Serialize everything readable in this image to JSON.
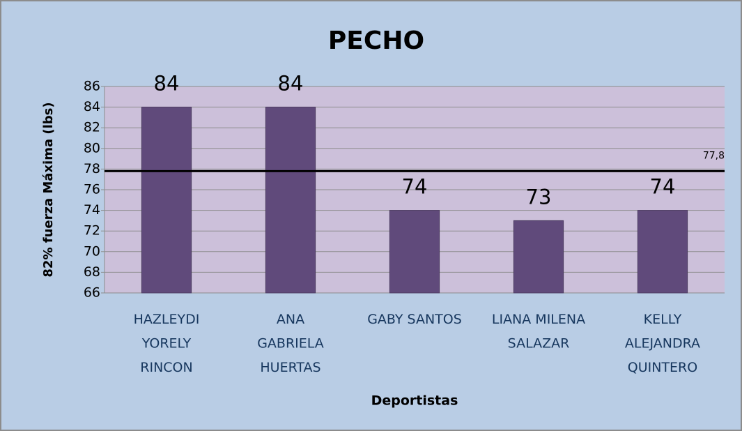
{
  "chart_data": {
    "type": "bar",
    "title": "PECHO",
    "x_label": "Deportistas",
    "y_label": "82% fuerza Máxima (lbs)",
    "categories": [
      "HAZLEYDI\nYORELY\nRINCON",
      "ANA\nGABRIELA\nHUERTAS",
      "GABY SANTOS",
      "LIANA MILENA\nSALAZAR",
      "KELLY\nALEJANDRA\nQUINTERO"
    ],
    "values": [
      84,
      84,
      74,
      73,
      74
    ],
    "color": "#604a7b",
    "ylim": [
      66,
      86
    ],
    "yticks": [
      66,
      68,
      70,
      72,
      74,
      76,
      78,
      80,
      82,
      84,
      86
    ],
    "grid": true,
    "reference_line": {
      "value": 77.8,
      "label": "77,8",
      "color": "#000000"
    }
  }
}
